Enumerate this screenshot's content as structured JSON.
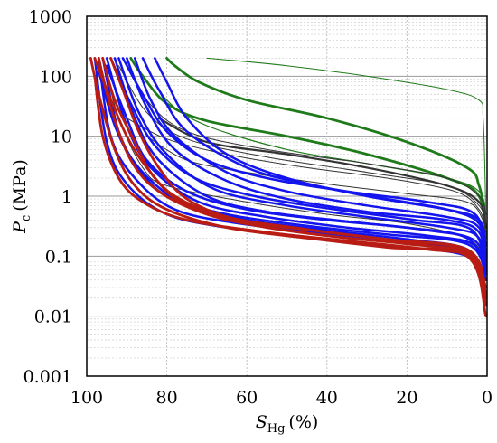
{
  "chart_data": {
    "type": "line",
    "x_axis": {
      "label_main": "S",
      "label_sub": "Hg",
      "label_unit": "(%)",
      "range": [
        100,
        0
      ],
      "reversed": true,
      "ticks": [
        100,
        80,
        60,
        40,
        20,
        0
      ],
      "tick_labels": [
        "100",
        "80",
        "60",
        "40",
        "20",
        "0"
      ]
    },
    "y_axis": {
      "label_main": "P",
      "label_sub": "c",
      "label_unit": "(MPa)",
      "scale": "log",
      "range": [
        0.001,
        1000
      ],
      "ticks": [
        0.001,
        0.01,
        0.1,
        1,
        10,
        100,
        1000
      ],
      "tick_labels": [
        "0.001",
        "0.01",
        "0.1",
        "1",
        "10",
        "100",
        "1000"
      ]
    },
    "grid": true,
    "legend": "none",
    "colors": {
      "green": "#1f7a1a",
      "black": "#333333",
      "blue": "#1414ee",
      "red": "#b81c12"
    },
    "series": [
      {
        "color": "green",
        "width": 1.0,
        "points": [
          [
            70,
            200
          ],
          [
            50,
            150
          ],
          [
            30,
            100
          ],
          [
            10,
            60
          ],
          [
            2,
            40
          ],
          [
            1,
            20
          ],
          [
            0.5,
            2
          ],
          [
            0.3,
            0.3
          ]
        ]
      },
      {
        "color": "green",
        "width": 2.8,
        "points": [
          [
            80,
            200
          ],
          [
            78,
            150
          ],
          [
            72,
            80
          ],
          [
            60,
            40
          ],
          [
            40,
            20
          ],
          [
            20,
            8
          ],
          [
            5,
            3
          ],
          [
            2,
            1.5
          ],
          [
            0.5,
            0.5
          ]
        ]
      },
      {
        "color": "green",
        "width": 2.8,
        "points": [
          [
            89,
            200
          ],
          [
            86,
            100
          ],
          [
            80,
            35
          ],
          [
            70,
            18
          ],
          [
            50,
            10
          ],
          [
            30,
            5
          ],
          [
            10,
            2
          ],
          [
            2,
            1
          ],
          [
            0.3,
            0.2
          ]
        ]
      },
      {
        "color": "green",
        "width": 1.2,
        "points": [
          [
            86,
            200
          ],
          [
            80,
            40
          ],
          [
            70,
            15
          ],
          [
            50,
            6
          ],
          [
            30,
            3.5
          ],
          [
            10,
            2
          ],
          [
            2,
            1.2
          ],
          [
            0.3,
            0.5
          ]
        ]
      },
      {
        "color": "black",
        "width": 2.2,
        "points": [
          [
            82,
            20
          ],
          [
            70,
            8
          ],
          [
            50,
            5
          ],
          [
            30,
            3
          ],
          [
            10,
            1.5
          ],
          [
            2,
            0.8
          ],
          [
            0.3,
            0.3
          ]
        ]
      },
      {
        "color": "black",
        "width": 1.0,
        "points": [
          [
            90,
            200
          ],
          [
            85,
            40
          ],
          [
            75,
            12
          ],
          [
            55,
            6
          ],
          [
            30,
            3.5
          ],
          [
            10,
            2
          ],
          [
            2,
            1
          ],
          [
            0.3,
            0.5
          ]
        ]
      },
      {
        "color": "black",
        "width": 1.0,
        "points": [
          [
            92,
            150
          ],
          [
            85,
            25
          ],
          [
            75,
            9
          ],
          [
            55,
            4.5
          ],
          [
            30,
            2.5
          ],
          [
            10,
            1.5
          ],
          [
            2,
            0.7
          ],
          [
            0.3,
            0.3
          ]
        ]
      },
      {
        "color": "black",
        "width": 1.0,
        "points": [
          [
            90,
            20
          ],
          [
            80,
            9
          ],
          [
            65,
            5
          ],
          [
            45,
            3
          ],
          [
            25,
            2
          ],
          [
            8,
            1.2
          ],
          [
            2,
            0.6
          ],
          [
            0.3,
            0.25
          ]
        ]
      },
      {
        "color": "black",
        "width": 1.0,
        "points": [
          [
            85,
            10
          ],
          [
            75,
            4
          ],
          [
            60,
            2.5
          ],
          [
            40,
            1.6
          ],
          [
            20,
            1.1
          ],
          [
            5,
            0.8
          ],
          [
            1,
            0.4
          ]
        ]
      },
      {
        "color": "black",
        "width": 1.0,
        "points": [
          [
            96,
            200
          ],
          [
            92,
            20
          ],
          [
            86,
            3
          ],
          [
            80,
            1.5
          ],
          [
            60,
            0.8
          ],
          [
            40,
            0.5
          ],
          [
            20,
            0.35
          ],
          [
            5,
            0.2
          ],
          [
            1,
            0.1
          ]
        ]
      },
      {
        "color": "blue",
        "width": 2.5,
        "points": [
          [
            83,
            200
          ],
          [
            80,
            80
          ],
          [
            75,
            20
          ],
          [
            65,
            5
          ],
          [
            50,
            2
          ],
          [
            30,
            1
          ],
          [
            10,
            0.6
          ],
          [
            2,
            0.4
          ],
          [
            0.3,
            0.15
          ]
        ]
      },
      {
        "color": "blue",
        "width": 2.5,
        "points": [
          [
            86,
            200
          ],
          [
            82,
            60
          ],
          [
            75,
            12
          ],
          [
            60,
            3
          ],
          [
            45,
            1.6
          ],
          [
            25,
            0.9
          ],
          [
            10,
            0.6
          ],
          [
            2,
            0.35
          ],
          [
            0.3,
            0.1
          ]
        ]
      },
      {
        "color": "blue",
        "width": 2.5,
        "points": [
          [
            88,
            200
          ],
          [
            84,
            40
          ],
          [
            78,
            10
          ],
          [
            65,
            2.5
          ],
          [
            50,
            1.2
          ],
          [
            30,
            0.7
          ],
          [
            10,
            0.45
          ],
          [
            2,
            0.3
          ],
          [
            0.3,
            0.08
          ]
        ]
      },
      {
        "color": "blue",
        "width": 2.5,
        "points": [
          [
            90,
            200
          ],
          [
            85,
            30
          ],
          [
            78,
            6
          ],
          [
            65,
            1.8
          ],
          [
            50,
            0.9
          ],
          [
            30,
            0.55
          ],
          [
            10,
            0.4
          ],
          [
            2,
            0.25
          ],
          [
            0.3,
            0.06
          ]
        ]
      },
      {
        "color": "blue",
        "width": 2.5,
        "points": [
          [
            92,
            200
          ],
          [
            87,
            25
          ],
          [
            80,
            5
          ],
          [
            68,
            1.3
          ],
          [
            50,
            0.7
          ],
          [
            30,
            0.45
          ],
          [
            10,
            0.3
          ],
          [
            2,
            0.2
          ],
          [
            0.3,
            0.05
          ]
        ]
      },
      {
        "color": "blue",
        "width": 2.5,
        "points": [
          [
            93,
            200
          ],
          [
            88,
            20
          ],
          [
            82,
            4
          ],
          [
            70,
            1
          ],
          [
            55,
            0.55
          ],
          [
            35,
            0.38
          ],
          [
            15,
            0.27
          ],
          [
            3,
            0.18
          ],
          [
            0.3,
            0.05
          ]
        ]
      },
      {
        "color": "blue",
        "width": 2.5,
        "points": [
          [
            95,
            200
          ],
          [
            90,
            15
          ],
          [
            84,
            3
          ],
          [
            72,
            0.8
          ],
          [
            55,
            0.45
          ],
          [
            35,
            0.3
          ],
          [
            15,
            0.22
          ],
          [
            3,
            0.15
          ],
          [
            0.3,
            0.04
          ]
        ]
      },
      {
        "color": "blue",
        "width": 2.5,
        "points": [
          [
            96,
            200
          ],
          [
            92,
            12
          ],
          [
            86,
            2.5
          ],
          [
            75,
            0.7
          ],
          [
            60,
            0.4
          ],
          [
            40,
            0.27
          ],
          [
            20,
            0.19
          ],
          [
            5,
            0.13
          ],
          [
            0.3,
            0.04
          ]
        ]
      },
      {
        "color": "blue",
        "width": 2.5,
        "points": [
          [
            97,
            200
          ],
          [
            94,
            10
          ],
          [
            88,
            2
          ],
          [
            78,
            0.6
          ],
          [
            62,
            0.35
          ],
          [
            40,
            0.24
          ],
          [
            20,
            0.17
          ],
          [
            5,
            0.12
          ],
          [
            0.3,
            0.03
          ]
        ]
      },
      {
        "color": "blue",
        "width": 2.5,
        "points": [
          [
            98,
            200
          ],
          [
            95,
            8
          ],
          [
            90,
            1.6
          ],
          [
            80,
            0.5
          ],
          [
            65,
            0.3
          ],
          [
            45,
            0.21
          ],
          [
            25,
            0.15
          ],
          [
            5,
            0.1
          ],
          [
            0.3,
            0.03
          ]
        ]
      },
      {
        "color": "blue",
        "width": 2.5,
        "points": [
          [
            95,
            150
          ],
          [
            90,
            20
          ],
          [
            85,
            4
          ],
          [
            75,
            1.2
          ],
          [
            60,
            0.6
          ],
          [
            40,
            0.4
          ],
          [
            20,
            0.3
          ],
          [
            5,
            0.2
          ],
          [
            0.3,
            0.06
          ]
        ]
      },
      {
        "color": "blue",
        "width": 2.5,
        "points": [
          [
            91,
            200
          ],
          [
            86,
            50
          ],
          [
            80,
            12
          ],
          [
            70,
            4
          ],
          [
            55,
            2
          ],
          [
            35,
            1.2
          ],
          [
            15,
            0.8
          ],
          [
            3,
            0.5
          ],
          [
            0.3,
            0.12
          ]
        ]
      },
      {
        "color": "blue",
        "width": 2.5,
        "points": [
          [
            97,
            120
          ],
          [
            93,
            15
          ],
          [
            88,
            3.5
          ],
          [
            80,
            1
          ],
          [
            65,
            0.5
          ],
          [
            45,
            0.32
          ],
          [
            25,
            0.23
          ],
          [
            5,
            0.16
          ],
          [
            0.3,
            0.05
          ]
        ]
      },
      {
        "color": "blue",
        "width": 2.5,
        "points": [
          [
            94,
            200
          ],
          [
            89,
            35
          ],
          [
            83,
            7
          ],
          [
            73,
            2
          ],
          [
            58,
            1
          ],
          [
            38,
            0.6
          ],
          [
            18,
            0.4
          ],
          [
            4,
            0.28
          ],
          [
            0.3,
            0.07
          ]
        ]
      },
      {
        "color": "red",
        "width": 2.8,
        "points": [
          [
            98,
            100
          ],
          [
            96,
            10
          ],
          [
            92,
            2
          ],
          [
            86,
            0.8
          ],
          [
            75,
            0.4
          ],
          [
            55,
            0.25
          ],
          [
            35,
            0.18
          ],
          [
            15,
            0.13
          ],
          [
            3,
            0.09
          ],
          [
            0.3,
            0.015
          ]
        ]
      },
      {
        "color": "red",
        "width": 2.8,
        "points": [
          [
            97,
            200
          ],
          [
            94,
            30
          ],
          [
            89,
            4
          ],
          [
            82,
            1.2
          ],
          [
            70,
            0.5
          ],
          [
            55,
            0.3
          ],
          [
            35,
            0.2
          ],
          [
            15,
            0.15
          ],
          [
            3,
            0.1
          ],
          [
            0.3,
            0.02
          ]
        ]
      },
      {
        "color": "red",
        "width": 2.8,
        "points": [
          [
            96,
            200
          ],
          [
            93,
            40
          ],
          [
            88,
            8
          ],
          [
            83,
            2
          ],
          [
            75,
            0.7
          ],
          [
            60,
            0.35
          ],
          [
            40,
            0.22
          ],
          [
            20,
            0.16
          ],
          [
            5,
            0.11
          ],
          [
            0.3,
            0.025
          ]
        ]
      },
      {
        "color": "red",
        "width": 2.8,
        "points": [
          [
            98,
            200
          ],
          [
            95,
            60
          ],
          [
            90,
            10
          ],
          [
            85,
            3
          ],
          [
            78,
            1
          ],
          [
            65,
            0.45
          ],
          [
            45,
            0.28
          ],
          [
            25,
            0.19
          ],
          [
            5,
            0.13
          ],
          [
            0.3,
            0.03
          ]
        ]
      },
      {
        "color": "red",
        "width": 2.8,
        "points": [
          [
            99,
            200
          ],
          [
            97,
            50
          ],
          [
            93,
            6
          ],
          [
            88,
            1.5
          ],
          [
            80,
            0.6
          ],
          [
            65,
            0.3
          ],
          [
            45,
            0.2
          ],
          [
            25,
            0.14
          ],
          [
            5,
            0.1
          ],
          [
            0.3,
            0.01
          ]
        ]
      },
      {
        "color": "red",
        "width": 2.8,
        "points": [
          [
            94,
            200
          ],
          [
            91,
            60
          ],
          [
            87,
            12
          ],
          [
            82,
            3
          ],
          [
            75,
            0.9
          ],
          [
            62,
            0.4
          ],
          [
            42,
            0.26
          ],
          [
            22,
            0.18
          ],
          [
            5,
            0.12
          ],
          [
            0.3,
            0.02
          ]
        ]
      }
    ]
  }
}
